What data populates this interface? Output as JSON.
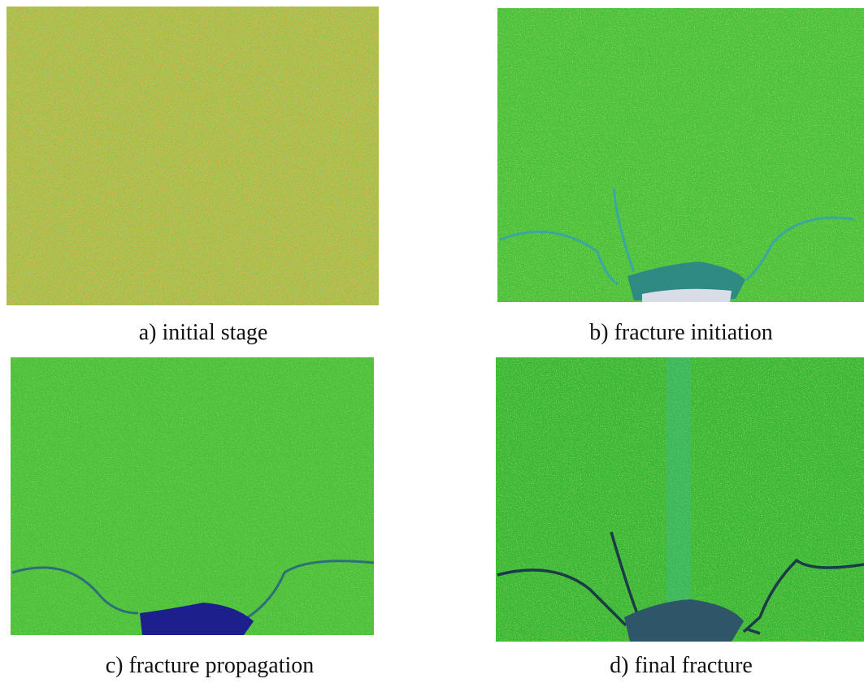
{
  "panels": [
    {
      "caption": "a) initial stage"
    },
    {
      "caption": "b) fracture initiation"
    },
    {
      "caption": "c) fracture propagation"
    },
    {
      "caption": "d) final fracture"
    }
  ]
}
